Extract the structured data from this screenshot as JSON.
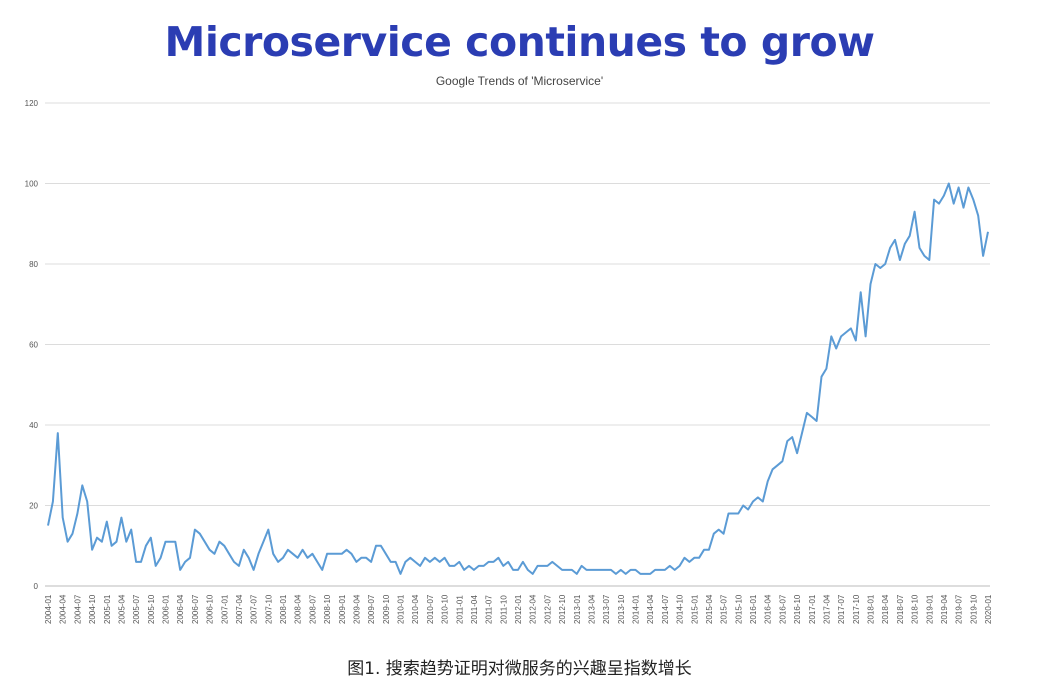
{
  "chart_data": {
    "type": "line",
    "title": "Microservice continues to grow",
    "subtitle": "Google Trends of 'Microservice'",
    "xlabel": "",
    "ylabel": "",
    "ylim": [
      0,
      120
    ],
    "yticks": [
      0,
      20,
      40,
      60,
      80,
      100,
      120
    ],
    "grid": true,
    "color": "#5b9bd5",
    "start": "2004-01",
    "series": [
      {
        "name": "Microservice",
        "values": [
          15,
          21,
          38,
          17,
          11,
          13,
          18,
          25,
          21,
          9,
          12,
          11,
          16,
          10,
          11,
          17,
          11,
          14,
          6,
          6,
          10,
          12,
          5,
          7,
          11,
          11,
          11,
          4,
          6,
          7,
          14,
          13,
          11,
          9,
          8,
          11,
          10,
          8,
          6,
          5,
          9,
          7,
          4,
          8,
          11,
          14,
          8,
          6,
          7,
          9,
          8,
          7,
          9,
          7,
          8,
          6,
          4,
          8,
          8,
          8,
          8,
          9,
          8,
          6,
          7,
          7,
          6,
          10,
          10,
          8,
          6,
          6,
          3,
          6,
          7,
          6,
          5,
          7,
          6,
          7,
          6,
          7,
          5,
          5,
          6,
          4,
          5,
          4,
          5,
          5,
          6,
          6,
          7,
          5,
          6,
          4,
          4,
          6,
          4,
          3,
          5,
          5,
          5,
          6,
          5,
          4,
          4,
          4,
          3,
          5,
          4,
          4,
          4,
          4,
          4,
          4,
          3,
          4,
          3,
          4,
          4,
          3,
          3,
          3,
          4,
          4,
          4,
          5,
          4,
          5,
          7,
          6,
          7,
          7,
          9,
          9,
          13,
          14,
          13,
          18,
          18,
          18,
          20,
          19,
          21,
          22,
          21,
          26,
          29,
          30,
          31,
          36,
          37,
          33,
          38,
          43,
          42,
          41,
          52,
          54,
          62,
          59,
          62,
          63,
          64,
          61,
          73,
          62,
          75,
          80,
          79,
          80,
          84,
          86,
          81,
          85,
          87,
          93,
          84,
          82,
          81,
          96,
          95,
          97,
          100,
          95,
          99,
          94,
          99,
          96,
          92,
          82,
          88
        ]
      }
    ],
    "xtick_labels": []
  },
  "caption": "图1. 搜索趋势证明对微服务的兴趣呈指数增长"
}
